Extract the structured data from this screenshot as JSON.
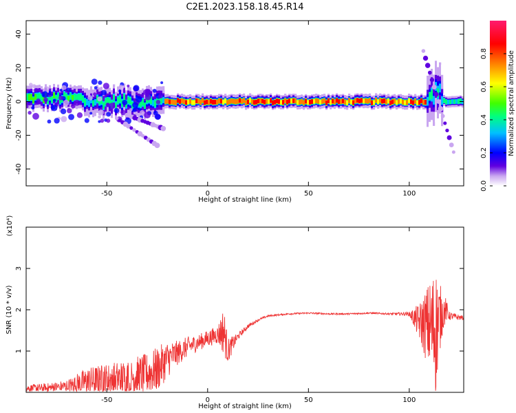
{
  "figure": {
    "title": "C2E1.2023.158.18.45.R14"
  },
  "chart_data": [
    {
      "type": "heatmap",
      "xlabel": "Height of straight line (km)",
      "ylabel": "Frequency (Hz)",
      "xlim": [
        -90,
        127
      ],
      "ylim": [
        -50,
        48
      ],
      "xticks": [
        -50,
        0,
        50,
        100
      ],
      "yticks": [
        -40,
        -20,
        0,
        20,
        40
      ],
      "grid": false,
      "colorbar": {
        "label": "Normalized spectral amplitude",
        "range": [
          0,
          1
        ],
        "ticks": [
          "0.0",
          "0.2",
          "0.4",
          "0.6",
          "0.8"
        ],
        "colormap": [
          "#ffffff",
          "#c9a6f0",
          "#6000e0",
          "#0000ff",
          "#00c0ff",
          "#00ff80",
          "#40ff00",
          "#ffff00",
          "#ff8000",
          "#ff0000",
          "#ff1a6e"
        ]
      },
      "features": [
        {
          "x": [
            -90,
            -62
          ],
          "freq_center": 2,
          "freq_spread": 8,
          "max_amplitude": 0.55
        },
        {
          "x": [
            -62,
            -22
          ],
          "freq_center": 0,
          "freq_spread": 10,
          "max_amplitude": 0.5
        },
        {
          "x": [
            -22,
            108
          ],
          "freq_center": 0,
          "freq_spread": 3,
          "max_amplitude": 0.85
        },
        {
          "x": [
            108,
            116
          ],
          "freq_center": 5,
          "freq_spread": 20,
          "max_amplitude": 0.5
        },
        {
          "x": [
            116,
            127
          ],
          "freq_center": 0,
          "freq_spread": 3,
          "max_amplitude": 0.45
        }
      ],
      "side_branches": [
        {
          "x": [
            -45,
            -25
          ],
          "freq": [
            -10,
            -26
          ]
        },
        {
          "x": [
            -40,
            -22
          ],
          "freq": [
            -8,
            -16
          ]
        },
        {
          "x": [
            107,
            122
          ],
          "freq": [
            30,
            -30
          ]
        }
      ]
    },
    {
      "type": "line",
      "xlabel": "Height of straight line (km)",
      "ylabel": "SNR (10 * v/v)",
      "y_multiplier": "(x10⁴)",
      "xlim": [
        -90,
        127
      ],
      "ylim": [
        0,
        4
      ],
      "xticks": [
        -50,
        0,
        50,
        100
      ],
      "yticks": [
        1,
        2,
        3
      ],
      "grid": false,
      "series": [
        {
          "color": "#ee3333",
          "x": [
            -90,
            -80,
            -70,
            -60,
            -50,
            -40,
            -30,
            -25,
            -20,
            -15,
            -10,
            -5,
            0,
            5,
            8,
            10,
            15,
            20,
            25,
            30,
            40,
            50,
            60,
            70,
            80,
            90,
            100,
            105,
            110,
            113,
            116,
            118,
            120,
            127
          ],
          "y": [
            0.1,
            0.1,
            0.15,
            0.25,
            0.3,
            0.35,
            0.45,
            0.55,
            0.8,
            0.95,
            1.1,
            1.2,
            1.3,
            1.4,
            1.5,
            1.0,
            1.35,
            1.6,
            1.75,
            1.85,
            1.9,
            1.92,
            1.9,
            1.9,
            1.92,
            1.9,
            1.9,
            1.7,
            1.6,
            1.5,
            1.9,
            2.0,
            1.85,
            1.8
          ],
          "noise_amplitude": [
            0.08,
            0.12,
            0.15,
            0.35,
            0.4,
            0.45,
            0.5,
            0.55,
            0.45,
            0.3,
            0.25,
            0.2,
            0.2,
            0.22,
            0.6,
            0.3,
            0.08,
            0.05,
            0.03,
            0.02,
            0.02,
            0.02,
            0.02,
            0.02,
            0.02,
            0.02,
            0.05,
            0.45,
            1.1,
            1.6,
            0.6,
            0.3,
            0.1,
            0.05
          ]
        }
      ]
    }
  ]
}
